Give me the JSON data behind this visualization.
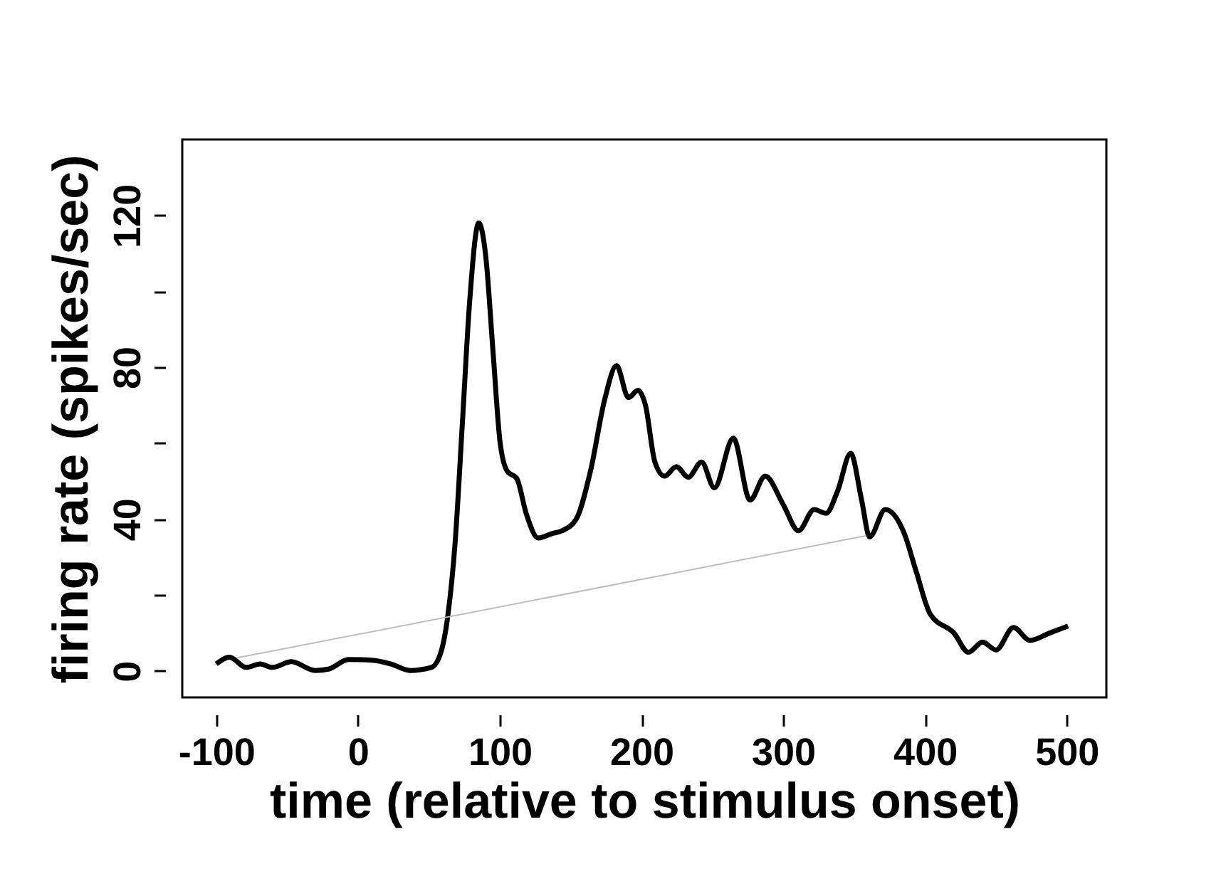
{
  "chart_data": {
    "type": "line",
    "xlabel": "time (relative to stimulus onset)",
    "ylabel": "firing rate (spikes/sec)",
    "xlim": [
      -124,
      528
    ],
    "ylim": [
      -7,
      140
    ],
    "xticks": [
      -100,
      0,
      100,
      200,
      300,
      400,
      500
    ],
    "yticks": [
      0,
      {
        "value": 20,
        "label": null
      },
      40,
      {
        "value": 60,
        "label": null
      },
      80,
      {
        "value": 100,
        "label": null
      },
      120
    ],
    "grid": false,
    "legend": false,
    "marker": "none",
    "line_style": "solid",
    "series": [
      {
        "color": "#000000",
        "x": [
          -100,
          -90.6,
          -79,
          -69,
          -60.5,
          -47,
          -30.3,
          -20.3,
          -6.8,
          9.9,
          23.3,
          36.7,
          51.8,
          58.5,
          63.5,
          68.5,
          73.6,
          78.6,
          85.2,
          90.2,
          95.3,
          100.3,
          105.3,
          112,
          118.8,
          127.1,
          137.2,
          143.9,
          154,
          164,
          174,
          182.4,
          190.8,
          197.5,
          202.8,
          209.5,
          216.3,
          224.6,
          233,
          242.4,
          251.4,
          264.8,
          276.6,
          287.3,
          300,
          310.8,
          321.8,
          330.2,
          338.5,
          347.6,
          355.3,
          361,
          372,
          385.4,
          393.8,
          403.8,
          420.6,
          430.7,
          440.7,
          450.1,
          462.5,
          474.2,
          487.6,
          501
        ],
        "values": [
          1.8,
          3.6,
          0.9,
          1.8,
          0.9,
          2.4,
          0.1,
          0.5,
          3.0,
          2.8,
          1.8,
          0.1,
          0.9,
          4.9,
          14.9,
          33.7,
          65,
          96.4,
          118,
          109,
          83.9,
          60,
          52.6,
          50.7,
          41.3,
          35,
          36.2,
          36.9,
          40,
          52.6,
          71.4,
          80.4,
          72,
          73.9,
          70,
          55,
          51.3,
          53.8,
          51,
          55,
          48.2,
          61.3,
          45,
          51.3,
          43.8,
          36.9,
          42.5,
          41.5,
          47.5,
          57.3,
          45,
          35.3,
          42.5,
          36.2,
          26.2,
          14.9,
          9.9,
          4.9,
          7.6,
          5.5,
          11.4,
          8,
          9.9,
          11.8
        ]
      },
      {
        "color": "#bebebe",
        "x": [
          -85.6,
          358.6
        ],
        "values": [
          3.4,
          35.6
        ]
      }
    ]
  }
}
